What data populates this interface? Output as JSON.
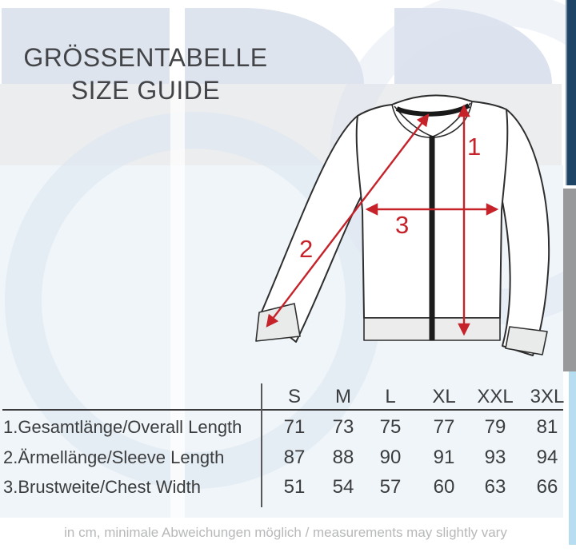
{
  "title": {
    "line1": "GRÖSSENTABELLE",
    "line2": "SIZE GUIDE"
  },
  "jacket_diagram": {
    "markers": [
      "1",
      "2",
      "3"
    ]
  },
  "size_table": {
    "columns": [
      "S",
      "M",
      "L",
      "XL",
      "XXL",
      "3XL"
    ],
    "rows": [
      {
        "label": "1.Gesamtlänge/Overall Length",
        "values": [
          "71",
          "73",
          "75",
          "77",
          "79",
          "81"
        ]
      },
      {
        "label": "2.Ärmellänge/Sleeve Length",
        "values": [
          "87",
          "88",
          "90",
          "91",
          "93",
          "94"
        ]
      },
      {
        "label": "3.Brustweite/Chest Width",
        "values": [
          "51",
          "54",
          "57",
          "60",
          "63",
          "66"
        ]
      }
    ]
  },
  "footer": {
    "note": "in cm, minimale Abweichungen möglich / measurements may slightly vary"
  },
  "colors": {
    "accent_red": "#c5222a",
    "navy_bar": "#1f4566",
    "gray_bar": "#98999b",
    "blue_bar": "#b7ddf1",
    "band_blue": "#dde4ee",
    "band_gray": "#ebedef",
    "band_pale": "#eff5f9",
    "text_dark": "#3b3c3e",
    "footer_gray": "#b6b8ba"
  }
}
